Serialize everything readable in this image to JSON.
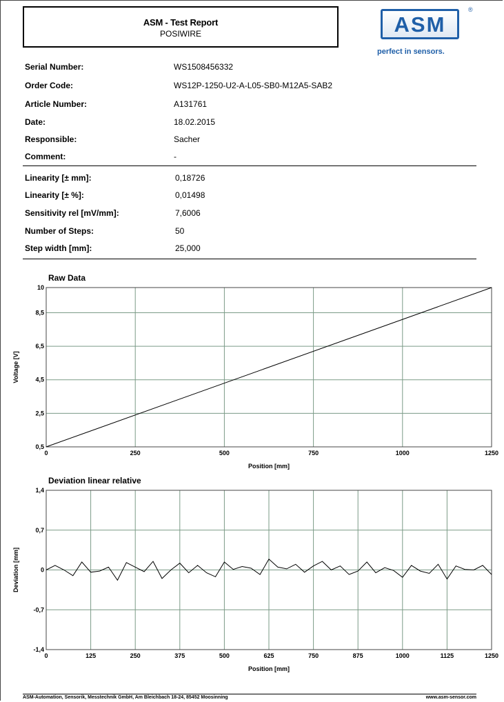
{
  "header": {
    "title": "ASM - Test Report",
    "subtitle": "POSIWIRE"
  },
  "logo": {
    "text": "ASM",
    "registered": "®",
    "tagline": "perfect in sensors.",
    "color": "#1f5fa8"
  },
  "info": [
    {
      "label": "Serial Number:",
      "value": "WS1508456332"
    },
    {
      "label": "Order Code:",
      "value": "WS12P-1250-U2-A-L05-SB0-M12A5-SAB2"
    },
    {
      "label": "Article Number:",
      "value": "A131761"
    },
    {
      "label": "Date:",
      "value": "18.02.2015"
    },
    {
      "label": "Responsible:",
      "value": "Sacher"
    },
    {
      "label": "Comment:",
      "value": "-"
    }
  ],
  "results": [
    {
      "label": "Linearity [± mm]:",
      "value": "0,18726"
    },
    {
      "label": "Linearity [± %]:",
      "value": "0,01498"
    },
    {
      "label": "Sensitivity rel [mV/mm]:",
      "value": "7,6006"
    },
    {
      "label": "Number of Steps:",
      "value": "50"
    },
    {
      "label": "Step width [mm]:",
      "value": "25,000"
    }
  ],
  "chart_data": [
    {
      "type": "line",
      "title": "Raw Data",
      "xlabel": "Position [mm]",
      "ylabel": "Voltage [V]",
      "xlim": [
        0,
        1250
      ],
      "ylim": [
        0.5,
        10
      ],
      "xticks": [
        0,
        250,
        500,
        750,
        1000,
        1250
      ],
      "xtick_labels": [
        "0",
        "250",
        "500",
        "750",
        "1000",
        "1250"
      ],
      "yticks": [
        0.5,
        2.5,
        4.5,
        6.5,
        8.5,
        10
      ],
      "ytick_labels": [
        "0,5",
        "2,5",
        "4,5",
        "6,5",
        "8,5",
        "10"
      ],
      "grid": true,
      "series": [
        {
          "x": [
            0,
            1250
          ],
          "y": [
            0.5,
            10
          ]
        }
      ]
    },
    {
      "type": "line",
      "title": "Deviation linear relative",
      "xlabel": "Position [mm]",
      "ylabel": "Deviation [mm]",
      "xlim": [
        0,
        1250
      ],
      "ylim": [
        -1.4,
        1.4
      ],
      "xticks": [
        0,
        125,
        250,
        375,
        500,
        625,
        750,
        875,
        1000,
        1125,
        1250
      ],
      "xtick_labels": [
        "0",
        "125",
        "250",
        "375",
        "500",
        "625",
        "750",
        "875",
        "1000",
        "1125",
        "1250"
      ],
      "yticks": [
        -1.4,
        -0.7,
        0,
        0.7,
        1.4
      ],
      "ytick_labels": [
        "-1,4",
        "-0,7",
        "0",
        "0,7",
        "1,4"
      ],
      "grid": true,
      "series": [
        {
          "x": [
            0,
            25,
            50,
            75,
            100,
            125,
            150,
            175,
            200,
            225,
            250,
            275,
            300,
            325,
            350,
            375,
            400,
            425,
            450,
            475,
            500,
            525,
            550,
            575,
            600,
            625,
            650,
            675,
            700,
            725,
            750,
            775,
            800,
            825,
            850,
            875,
            900,
            925,
            950,
            975,
            1000,
            1025,
            1050,
            1075,
            1100,
            1125,
            1150,
            1175,
            1200,
            1225,
            1250
          ],
          "y": [
            0.0,
            0.08,
            0.0,
            -0.1,
            0.14,
            -0.04,
            -0.02,
            0.05,
            -0.18,
            0.13,
            0.05,
            -0.03,
            0.15,
            -0.15,
            0.0,
            0.12,
            -0.05,
            0.08,
            -0.05,
            -0.12,
            0.14,
            0.01,
            0.06,
            0.03,
            -0.08,
            0.19,
            0.05,
            0.02,
            0.1,
            -0.04,
            0.07,
            0.15,
            0.0,
            0.07,
            -0.08,
            -0.02,
            0.14,
            -0.05,
            0.04,
            -0.01,
            -0.13,
            0.08,
            -0.02,
            -0.06,
            0.1,
            -0.16,
            0.07,
            0.01,
            0.0,
            0.08,
            -0.08
          ]
        }
      ]
    }
  ],
  "footer": {
    "left": "ASM-Automation, Sensorik, Messtechnik GmbH, Am Bleichbach 18-24, 85452 Moosinning",
    "right": "www.asm-sensor.com"
  }
}
